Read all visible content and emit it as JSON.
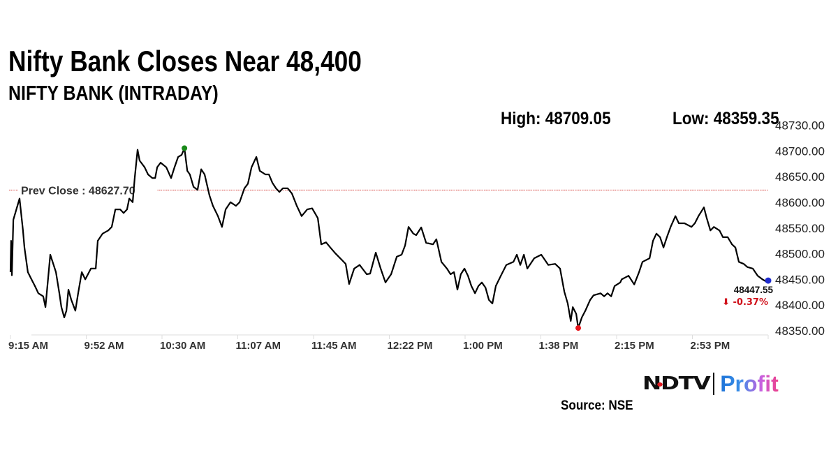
{
  "header": {
    "title": "Nifty Bank Closes Near 48,400",
    "subtitle": "NIFTY BANK (INTRADAY)",
    "high_label": "High: 48709.05",
    "low_label": "Low: 48359.35"
  },
  "footer": {
    "logo_text": "NDTV | Profit",
    "source": "Source: NSE"
  },
  "colors": {
    "line": "#000000",
    "prev_close": "#d9534f",
    "high_dot": "#1a8a1a",
    "low_dot": "#e8141a",
    "close_dot": "#1f2ccf",
    "change": "#d0121b",
    "axis_text": "#333333"
  },
  "chart_data": {
    "type": "line",
    "title": "NIFTY BANK (INTRADAY)",
    "xlabel": "",
    "ylabel": "",
    "x_unit": "minutes since 9:15 AM",
    "xlim": [
      0,
      375
    ],
    "x_ticks": [
      {
        "minute": 0,
        "label": "9:15 AM"
      },
      {
        "minute": 37.5,
        "label": "9:52 AM"
      },
      {
        "minute": 75,
        "label": "10:30 AM"
      },
      {
        "minute": 112.5,
        "label": "11:07 AM"
      },
      {
        "minute": 150,
        "label": "11:45 AM"
      },
      {
        "minute": 187.5,
        "label": "12:22 PM"
      },
      {
        "minute": 225,
        "label": "1:00 PM"
      },
      {
        "minute": 262.5,
        "label": "1:38 PM"
      },
      {
        "minute": 300,
        "label": "2:15 PM"
      },
      {
        "minute": 337.5,
        "label": "2:53 PM"
      }
    ],
    "y_tick_labels": [
      "48350.00",
      "48400.00",
      "48450.00",
      "48500.00",
      "48550.00",
      "48600.00",
      "48650.00",
      "48700.00",
      "48730.00"
    ],
    "ylim": [
      48350,
      48750
    ],
    "grid": false,
    "prev_close": {
      "value": 48627.7,
      "label": "Prev Close : 48627.70"
    },
    "high": {
      "minute": 86.1,
      "value": 48709.05
    },
    "low": {
      "minute": 281.0,
      "value": 48359.35
    },
    "close": {
      "value": 48447.55,
      "label": "48447.55",
      "change": "⬇ -0.37%"
    },
    "minutes": [
      0,
      0.3,
      0.7,
      1.4,
      4.5,
      6.2,
      6.9,
      8.6,
      10.4,
      12.1,
      13.8,
      16.2,
      17.3,
      19.7,
      22.5,
      24.2,
      25.2,
      26.6,
      27.7,
      28.7,
      30.1,
      32.1,
      33.5,
      35.3,
      37.0,
      39.8,
      42.2,
      43.2,
      45.6,
      48.4,
      50.1,
      51.9,
      54.3,
      56.0,
      57.7,
      58.8,
      60.5,
      61.5,
      62.9,
      63.9,
      66.4,
      68.1,
      70.2,
      71.6,
      72.6,
      74.3,
      77.1,
      79.5,
      81.2,
      83.0,
      84.7,
      86.1,
      87.5,
      88.8,
      90.6,
      92.6,
      94.4,
      96.1,
      98.5,
      100.2,
      102.7,
      104.7,
      106.5,
      108.9,
      111.6,
      113.4,
      115.8,
      117.5,
      119.3,
      121.7,
      123.4,
      126.2,
      127.9,
      129.6,
      131.4,
      133.1,
      134.8,
      137.2,
      139.3,
      141.7,
      144.1,
      146.9,
      149.3,
      152.1,
      153.8,
      156.2,
      158.3,
      160.7,
      164.2,
      165.9,
      167.6,
      170.1,
      172.8,
      176.3,
      178.0,
      180.8,
      183.2,
      185.6,
      188.4,
      191.2,
      193.6,
      195.3,
      197.0,
      199.4,
      200.8,
      203.3,
      205.7,
      209.1,
      210.8,
      213.3,
      216.0,
      217.8,
      219.5,
      221.2,
      222.9,
      224.7,
      226.4,
      228.1,
      229.9,
      231.6,
      233.3,
      235.1,
      236.8,
      238.5,
      240.2,
      242.7,
      245.4,
      248.9,
      250.6,
      252.3,
      254.1,
      255.8,
      259.2,
      262.7,
      266.2,
      269.6,
      272.0,
      274.1,
      275.8,
      277.3,
      278.3,
      280.0,
      281.0,
      282.8,
      284.5,
      286.9,
      288.6,
      292.1,
      293.8,
      295.5,
      297.3,
      299.0,
      301.8,
      302.5,
      305.9,
      308.7,
      311.1,
      312.8,
      316.3,
      318.0,
      319.7,
      321.5,
      323.2,
      324.9,
      326.7,
      329.1,
      330.8,
      333.6,
      337.0,
      338.7,
      340.5,
      343.2,
      344.6,
      346.4,
      348.1,
      350.9,
      352.6,
      355.0,
      357.1,
      358.8,
      360.5,
      362.9,
      364.7,
      367.4,
      369.8,
      372.2,
      375
    ],
    "values": [
      48468,
      48529,
      48462,
      48570,
      48611,
      48549,
      48516,
      48468,
      48454,
      48441,
      48427,
      48421,
      48400,
      48502,
      48468,
      48427,
      48400,
      48380,
      48393,
      48434,
      48414,
      48393,
      48427,
      48468,
      48454,
      48475,
      48475,
      48529,
      48543,
      48549,
      48556,
      48590,
      48590,
      48583,
      48590,
      48611,
      48604,
      48651,
      48706,
      48685,
      48672,
      48658,
      48651,
      48651,
      48672,
      48681,
      48672,
      48651,
      48672,
      48692,
      48696,
      48709.05,
      48665,
      48658,
      48634,
      48628,
      48668,
      48658,
      48617,
      48597,
      48577,
      48556,
      48590,
      48604,
      48597,
      48604,
      48631,
      48640,
      48672,
      48692,
      48665,
      48658,
      48658,
      48642,
      48631,
      48624,
      48631,
      48631,
      48621,
      48597,
      48577,
      48590,
      48592,
      48573,
      48522,
      48526,
      48516,
      48505,
      48491,
      48484,
      48445,
      48475,
      48482,
      48464,
      48465,
      48506,
      48475,
      48448,
      48464,
      48498,
      48502,
      48520,
      48556,
      48543,
      48540,
      48555,
      48525,
      48522,
      48532,
      48488,
      48475,
      48464,
      48468,
      48434,
      48464,
      48475,
      48461,
      48441,
      48427,
      48441,
      48448,
      48438,
      48414,
      48407,
      48441,
      48461,
      48482,
      48488,
      48502,
      48482,
      48502,
      48475,
      48495,
      48502,
      48482,
      48484,
      48475,
      48430,
      48407,
      48373,
      48400,
      48387,
      48359.35,
      48380,
      48393,
      48414,
      48423,
      48427,
      48421,
      48427,
      48421,
      48441,
      48448,
      48454,
      48461,
      48444,
      48468,
      48488,
      48495,
      48529,
      48543,
      48536,
      48516,
      48536,
      48556,
      48577,
      48563,
      48563,
      48556,
      48563,
      48577,
      48594,
      48573,
      48549,
      48556,
      48549,
      48536,
      48536,
      48522,
      48516,
      48488,
      48484,
      48478,
      48475,
      48461,
      48454,
      48447.55
    ]
  }
}
